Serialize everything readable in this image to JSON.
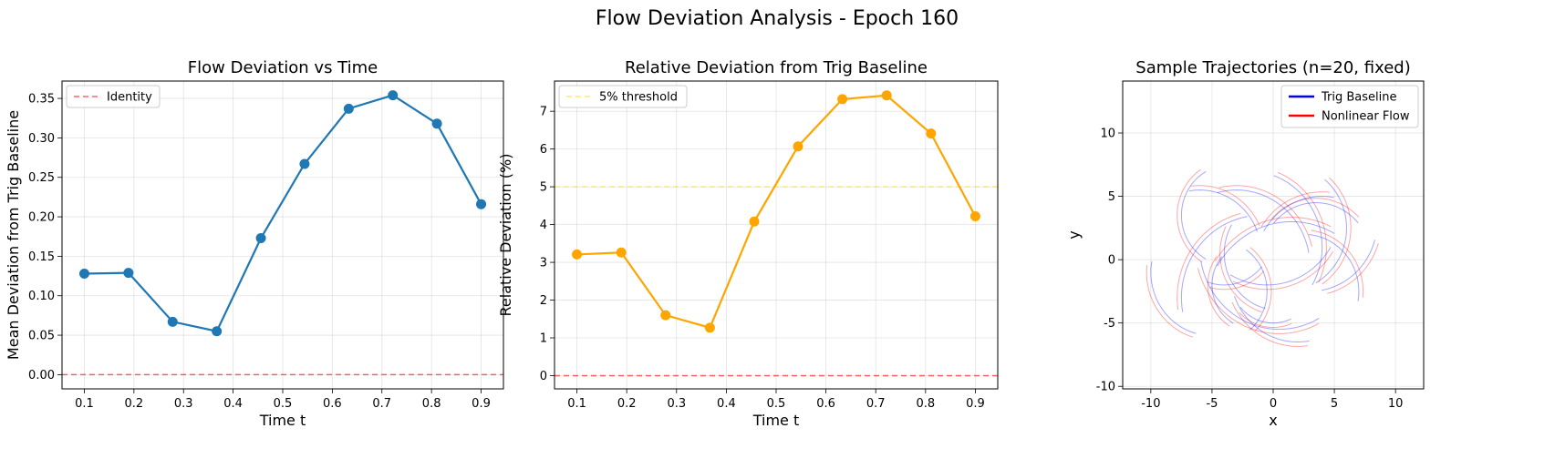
{
  "suptitle": "Flow Deviation Analysis - Epoch 160",
  "colors": {
    "blue_line": "#1f77b4",
    "orange_line": "#ffa500",
    "identity_red": "#ff0000",
    "threshold_yellow": "#ffe000",
    "traj_blue": "#0000ff",
    "traj_red": "#ff0000",
    "grid": "#b0b0b0"
  },
  "chart_data": [
    {
      "type": "line",
      "title": "Flow Deviation vs Time",
      "xlabel": "Time t",
      "ylabel": "Mean Deviation from Trig Baseline",
      "xlim": [
        0.055,
        0.945
      ],
      "ylim": [
        -0.018,
        0.372
      ],
      "xticks": [
        "0.1",
        "0.2",
        "0.3",
        "0.4",
        "0.5",
        "0.6",
        "0.7",
        "0.8",
        "0.9"
      ],
      "yticks": [
        "0.00",
        "0.05",
        "0.10",
        "0.15",
        "0.20",
        "0.25",
        "0.30",
        "0.35"
      ],
      "grid": true,
      "legend_position": "upper left",
      "x": [
        0.1,
        0.189,
        0.278,
        0.367,
        0.456,
        0.544,
        0.633,
        0.722,
        0.811,
        0.9
      ],
      "series": [
        {
          "values": [
            0.128,
            0.129,
            0.067,
            0.055,
            0.173,
            0.267,
            0.337,
            0.354,
            0.318,
            0.216
          ]
        }
      ],
      "reference_lines": [
        {
          "name": "Identity",
          "y": 0,
          "style": "dashed"
        }
      ]
    },
    {
      "type": "line",
      "title": "Relative Deviation from Trig Baseline",
      "xlabel": "Time t",
      "ylabel": "Relative Deviation (%)",
      "xlim": [
        0.055,
        0.945
      ],
      "ylim": [
        -0.35,
        7.8
      ],
      "xticks": [
        "0.1",
        "0.2",
        "0.3",
        "0.4",
        "0.5",
        "0.6",
        "0.7",
        "0.8",
        "0.9"
      ],
      "yticks": [
        "0",
        "1",
        "2",
        "3",
        "4",
        "5",
        "6",
        "7"
      ],
      "grid": true,
      "legend_position": "upper left",
      "x": [
        0.1,
        0.189,
        0.278,
        0.367,
        0.456,
        0.544,
        0.633,
        0.722,
        0.811,
        0.9
      ],
      "series": [
        {
          "values": [
            3.21,
            3.26,
            1.6,
            1.27,
            4.08,
            6.07,
            7.32,
            7.42,
            6.41,
            4.22
          ]
        }
      ],
      "reference_lines": [
        {
          "name": "5% threshold",
          "y": 5,
          "style": "dashed"
        },
        {
          "y": 0,
          "style": "dashed"
        }
      ]
    },
    {
      "type": "line",
      "title": "Sample Trajectories (n=20, fixed)",
      "xlabel": "x",
      "ylabel": "y",
      "xlim": [
        -12.3,
        12.3
      ],
      "ylim": [
        -10.2,
        14.1
      ],
      "xticks": [
        "-10",
        "-5",
        "0",
        "5",
        "10"
      ],
      "yticks": [
        "-10",
        "-5",
        "0",
        "5",
        "10"
      ],
      "grid": true,
      "legend_position": "upper right",
      "legend": [
        "Trig Baseline",
        "Nonlinear Flow"
      ],
      "trajectories": [
        {
          "a": 150,
          "d": 105,
          "r": 4.5,
          "cx": 0.5,
          "cy": 0.5
        },
        {
          "a": 200,
          "d": 80,
          "r": 5.5,
          "cx": 2.0,
          "cy": -1.0
        },
        {
          "a": 10,
          "d": 95,
          "r": 6.0,
          "cx": -3.0,
          "cy": -0.5
        },
        {
          "a": 250,
          "d": 70,
          "r": 4.0,
          "cx": -4.0,
          "cy": 2.0
        },
        {
          "a": 300,
          "d": 110,
          "r": 5.0,
          "cx": 1.0,
          "cy": 2.5
        },
        {
          "a": 100,
          "d": 90,
          "r": 6.5,
          "cx": -1.0,
          "cy": -3.0
        },
        {
          "a": 40,
          "d": 100,
          "r": 4.5,
          "cx": 3.5,
          "cy": 0.0
        },
        {
          "a": 170,
          "d": 85,
          "r": 5.0,
          "cx": -5.0,
          "cy": -1.0
        },
        {
          "a": 220,
          "d": 75,
          "r": 3.5,
          "cx": 0.0,
          "cy": -1.5
        },
        {
          "a": 330,
          "d": 100,
          "r": 6.0,
          "cx": -2.0,
          "cy": 1.0
        },
        {
          "a": 60,
          "d": 90,
          "r": 7.0,
          "cx": 1.5,
          "cy": -4.0
        },
        {
          "a": 120,
          "d": 120,
          "r": 4.0,
          "cx": -3.5,
          "cy": 3.5
        },
        {
          "a": 280,
          "d": 65,
          "r": 5.5,
          "cx": 3.0,
          "cy": 3.0
        },
        {
          "a": 190,
          "d": 110,
          "r": 6.5,
          "cx": 0.5,
          "cy": 1.0
        },
        {
          "a": 20,
          "d": 80,
          "r": 5.0,
          "cx": -6.0,
          "cy": 0.5
        },
        {
          "a": 350,
          "d": 95,
          "r": 4.5,
          "cx": 2.5,
          "cy": -2.5
        },
        {
          "a": 140,
          "d": 100,
          "r": 3.5,
          "cx": -1.5,
          "cy": -2.0
        },
        {
          "a": 240,
          "d": 90,
          "r": 6.0,
          "cx": -0.5,
          "cy": 4.0
        },
        {
          "a": 80,
          "d": 70,
          "r": 5.5,
          "cx": 4.0,
          "cy": -0.5
        },
        {
          "a": 310,
          "d": 105,
          "r": 4.0,
          "cx": -4.5,
          "cy": -2.5
        }
      ]
    }
  ]
}
